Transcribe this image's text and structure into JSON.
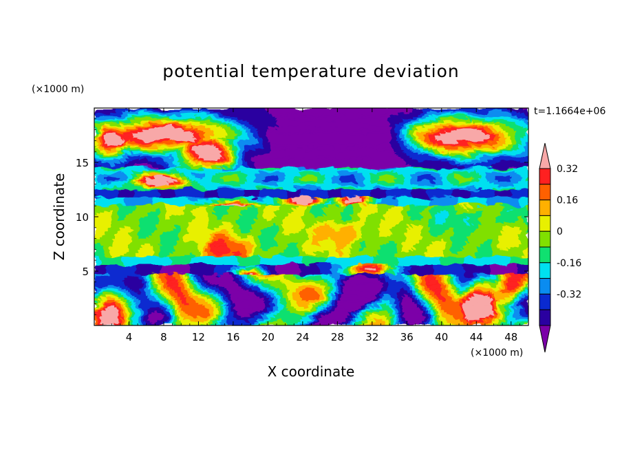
{
  "chart_data": {
    "type": "heatmap",
    "title": "potential temperature deviation",
    "xlabel": "X coordinate",
    "ylabel": "Z coordinate",
    "x_unit": "(×1000 m)",
    "y_unit": "(×1000 m)",
    "time_label": "t=1.1664e+06",
    "xlim": [
      0,
      50
    ],
    "ylim": [
      0,
      20
    ],
    "x_ticks": [
      4,
      8,
      12,
      16,
      20,
      24,
      28,
      32,
      36,
      40,
      44,
      48
    ],
    "y_ticks": [
      5,
      10,
      15
    ],
    "colorbar": {
      "labels": [
        "0.32",
        "0.16",
        "0",
        "-0.16",
        "-0.32"
      ],
      "label_values": [
        0.32,
        0.16,
        0,
        -0.16,
        -0.32
      ],
      "levels": [
        -0.4,
        -0.32,
        -0.24,
        -0.16,
        -0.08,
        0,
        0.08,
        0.16,
        0.24,
        0.32,
        0.4
      ],
      "colors": [
        "#7b00a8",
        "#2a00a0",
        "#0a2ad0",
        "#0a8cf0",
        "#00e0f0",
        "#10e070",
        "#80e000",
        "#e8f000",
        "#ffb000",
        "#ff6000",
        "#ff2020",
        "#f8a8a8"
      ]
    },
    "layers": [
      {
        "z_from": 0,
        "z_to": 4.8,
        "description_values": [
          -0.4,
          0.4
        ]
      },
      {
        "z_from": 4.8,
        "z_to": 5.6,
        "value": -0.36
      },
      {
        "z_from": 5.6,
        "z_to": 6.4,
        "value": -0.1
      },
      {
        "z_from": 6.4,
        "z_to": 9.5,
        "value": 0.04
      },
      {
        "z_from": 9.5,
        "z_to": 11.0,
        "value": 0.08
      },
      {
        "z_from": 11.0,
        "z_to": 11.8,
        "value": -0.16
      },
      {
        "z_from": 11.8,
        "z_to": 12.5,
        "value": -0.32
      },
      {
        "z_from": 12.5,
        "z_to": 14.5,
        "value": -0.1
      },
      {
        "z_from": 14.5,
        "z_to": 20,
        "value": -0.4
      }
    ]
  }
}
